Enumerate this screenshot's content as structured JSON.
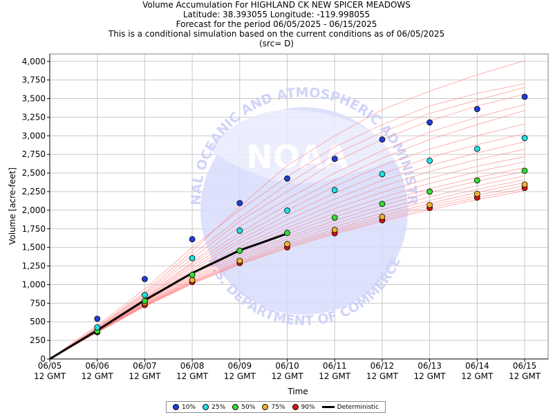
{
  "header": {
    "title": "Volume Accumulation For HIGHLAND CK NEW SPICER MEADOWS",
    "location": "Latitude: 38.393055 Longitude: -119.998055",
    "period": "Forecast for the period 06/05/2025 - 06/15/2025",
    "note": "This is a conditional simulation based on the current conditions as of 06/05/2025",
    "source": "(src= D)"
  },
  "watermark": {
    "logo_text": "NOAA",
    "ring_text_top": "NATIONAL OCEANIC AND ATMOSPHERIC ADMINISTRATION",
    "ring_text_bottom": "U.S. DEPARTMENT OF COMMERCE"
  },
  "chart_data": {
    "type": "line",
    "xlabel": "Time",
    "ylabel": "Volume [acre-feet]",
    "ylim": [
      0,
      4100
    ],
    "yticks": [
      0,
      250,
      500,
      750,
      1000,
      1250,
      1500,
      1750,
      2000,
      2250,
      2500,
      2750,
      3000,
      3250,
      3500,
      3750,
      4000
    ],
    "ytick_labels": [
      "0",
      "250",
      "500",
      "750",
      "1,000",
      "1,250",
      "1,500",
      "1,750",
      "2,000",
      "2,250",
      "2,500",
      "2,750",
      "3,000",
      "3,250",
      "3,500",
      "3,750",
      "4,000"
    ],
    "x_dates": [
      "06/05",
      "06/06",
      "06/07",
      "06/08",
      "06/09",
      "06/10",
      "06/11",
      "06/12",
      "06/13",
      "06/14",
      "06/15"
    ],
    "x_time_label": "12 GMT",
    "grid": true,
    "legend_position": "bottom-center",
    "series": [
      {
        "name": "10%",
        "color": "#1f3fd8",
        "values": [
          0,
          540,
          1075,
          1610,
          2095,
          2425,
          2690,
          2950,
          3180,
          3360,
          3525
        ]
      },
      {
        "name": "25%",
        "color": "#22e0e0",
        "values": [
          0,
          425,
          860,
          1355,
          1725,
          1995,
          2270,
          2485,
          2665,
          2825,
          2970
        ]
      },
      {
        "name": "50%",
        "color": "#33dd33",
        "values": [
          0,
          375,
          780,
          1130,
          1455,
          1695,
          1900,
          2085,
          2250,
          2400,
          2530
        ]
      },
      {
        "name": "75%",
        "color": "#f0b030",
        "values": [
          0,
          370,
          755,
          1060,
          1320,
          1545,
          1735,
          1910,
          2070,
          2220,
          2345
        ]
      },
      {
        "name": "90%",
        "color": "#dd1111",
        "values": [
          0,
          360,
          725,
          1035,
          1290,
          1500,
          1690,
          1865,
          2030,
          2170,
          2300
        ]
      }
    ],
    "deterministic": {
      "name": "Deterministic",
      "color": "#000000",
      "values": [
        0,
        385,
        790,
        1155,
        1460,
        1685
      ]
    },
    "traces_color": "#ff8080",
    "traces": [
      [
        0,
        430,
        900,
        1450,
        2050,
        2600,
        3000,
        3350,
        3600,
        3820,
        4010
      ],
      [
        0,
        450,
        940,
        1500,
        2000,
        2450,
        2850,
        3150,
        3400,
        3570,
        3700
      ],
      [
        0,
        420,
        880,
        1400,
        1900,
        2350,
        2750,
        3050,
        3300,
        3480,
        3650
      ],
      [
        0,
        410,
        860,
        1350,
        1850,
        2250,
        2650,
        2950,
        3200,
        3400,
        3560
      ],
      [
        0,
        400,
        840,
        1300,
        1780,
        2150,
        2500,
        2800,
        3050,
        3250,
        3420
      ],
      [
        0,
        400,
        820,
        1280,
        1700,
        2070,
        2400,
        2700,
        2950,
        3150,
        3340
      ],
      [
        0,
        395,
        810,
        1250,
        1650,
        2000,
        2320,
        2600,
        2820,
        3000,
        3160
      ],
      [
        0,
        390,
        800,
        1220,
        1600,
        1930,
        2230,
        2490,
        2710,
        2880,
        3030
      ],
      [
        0,
        385,
        790,
        1190,
        1560,
        1870,
        2150,
        2400,
        2600,
        2770,
        2920
      ],
      [
        0,
        380,
        780,
        1160,
        1510,
        1810,
        2080,
        2320,
        2520,
        2680,
        2820
      ],
      [
        0,
        378,
        770,
        1140,
        1480,
        1760,
        2020,
        2240,
        2430,
        2590,
        2720
      ],
      [
        0,
        375,
        760,
        1120,
        1450,
        1720,
        1960,
        2170,
        2360,
        2520,
        2650
      ],
      [
        0,
        372,
        750,
        1100,
        1420,
        1680,
        1910,
        2110,
        2290,
        2440,
        2570
      ],
      [
        0,
        370,
        742,
        1080,
        1390,
        1640,
        1860,
        2060,
        2240,
        2390,
        2520
      ],
      [
        0,
        368,
        735,
        1065,
        1360,
        1610,
        1820,
        2010,
        2180,
        2330,
        2460
      ],
      [
        0,
        365,
        728,
        1050,
        1330,
        1575,
        1780,
        1960,
        2130,
        2280,
        2410
      ],
      [
        0,
        362,
        722,
        1040,
        1310,
        1545,
        1745,
        1925,
        2090,
        2240,
        2370
      ],
      [
        0,
        360,
        716,
        1030,
        1295,
        1525,
        1720,
        1895,
        2060,
        2200,
        2330
      ],
      [
        0,
        358,
        710,
        1020,
        1280,
        1505,
        1700,
        1870,
        2030,
        2170,
        2290
      ],
      [
        0,
        356,
        705,
        1010,
        1270,
        1490,
        1680,
        1850,
        2005,
        2140,
        2260
      ]
    ]
  }
}
